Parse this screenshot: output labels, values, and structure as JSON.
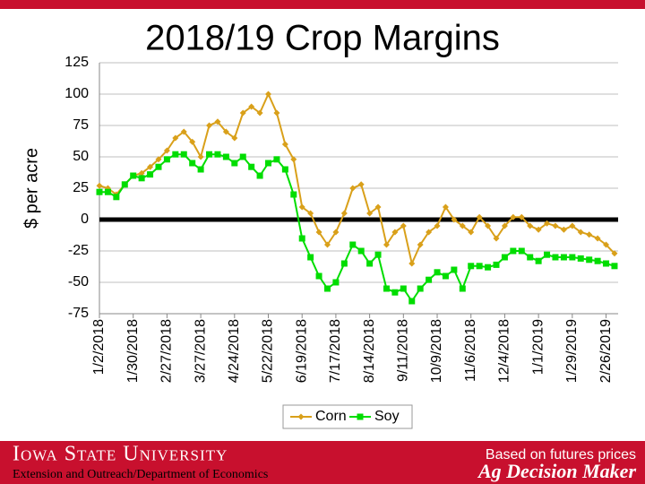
{
  "chart_data": {
    "type": "line",
    "title": "2018/19 Crop Margins",
    "y_label": "$ per acre",
    "x": [
      "2018-01-02",
      "2018-01-09",
      "2018-01-16",
      "2018-01-23",
      "2018-01-30",
      "2018-02-06",
      "2018-02-13",
      "2018-02-20",
      "2018-02-27",
      "2018-03-06",
      "2018-03-13",
      "2018-03-20",
      "2018-03-27",
      "2018-04-03",
      "2018-04-10",
      "2018-04-17",
      "2018-04-24",
      "2018-05-01",
      "2018-05-08",
      "2018-05-15",
      "2018-05-22",
      "2018-05-29",
      "2018-06-05",
      "2018-06-12",
      "2018-06-19",
      "2018-06-26",
      "2018-07-03",
      "2018-07-10",
      "2018-07-17",
      "2018-07-24",
      "2018-07-31",
      "2018-08-07",
      "2018-08-14",
      "2018-08-21",
      "2018-08-28",
      "2018-09-04",
      "2018-09-11",
      "2018-09-18",
      "2018-09-25",
      "2018-10-02",
      "2018-10-09",
      "2018-10-16",
      "2018-10-23",
      "2018-10-30",
      "2018-11-06",
      "2018-11-13",
      "2018-11-20",
      "2018-11-27",
      "2018-12-04",
      "2018-12-11",
      "2018-12-18",
      "2018-12-25",
      "2019-01-01",
      "2019-01-08",
      "2019-01-15",
      "2019-01-22",
      "2019-01-29",
      "2019-02-05",
      "2019-02-12",
      "2019-02-19",
      "2019-02-26",
      "2019-03-05"
    ],
    "series": [
      {
        "name": "Corn",
        "color": "#d9a01a",
        "marker": "diamond",
        "values": [
          27,
          25,
          20,
          28,
          35,
          37,
          42,
          48,
          55,
          65,
          70,
          62,
          50,
          75,
          78,
          70,
          65,
          85,
          90,
          85,
          100,
          85,
          60,
          48,
          10,
          5,
          -10,
          -20,
          -10,
          5,
          25,
          28,
          5,
          10,
          -20,
          -10,
          -5,
          -35,
          -20,
          -10,
          -5,
          10,
          0,
          -5,
          -10,
          2,
          -5,
          -15,
          -5,
          2,
          2,
          -5,
          -8,
          -3,
          -5,
          -8,
          -5,
          -10,
          -12,
          -15,
          -20,
          -27
        ]
      },
      {
        "name": "Soy",
        "color": "#00dd00",
        "marker": "square",
        "values": [
          22,
          22,
          18,
          28,
          35,
          33,
          36,
          42,
          48,
          52,
          52,
          45,
          40,
          52,
          52,
          50,
          45,
          50,
          42,
          35,
          45,
          48,
          40,
          20,
          -15,
          -30,
          -45,
          -55,
          -50,
          -35,
          -20,
          -25,
          -35,
          -28,
          -55,
          -58,
          -55,
          -65,
          -55,
          -48,
          -42,
          -45,
          -40,
          -55,
          -37,
          -37,
          -38,
          -36,
          -30,
          -25,
          -25,
          -30,
          -33,
          -28,
          -30,
          -30,
          -30,
          -31,
          -32,
          -33,
          -35,
          -37
        ]
      }
    ],
    "xlim": [
      "2018-01-02",
      "2019-03-08"
    ],
    "xticks": [
      {
        "value": "2018-01-02",
        "label": "1/2/2018"
      },
      {
        "value": "2018-01-30",
        "label": "1/30/2018"
      },
      {
        "value": "2018-02-27",
        "label": "2/27/2018"
      },
      {
        "value": "2018-03-27",
        "label": "3/27/2018"
      },
      {
        "value": "2018-04-24",
        "label": "4/24/2018"
      },
      {
        "value": "2018-05-22",
        "label": "5/22/2018"
      },
      {
        "value": "2018-06-19",
        "label": "6/19/2018"
      },
      {
        "value": "2018-07-17",
        "label": "7/17/2018"
      },
      {
        "value": "2018-08-14",
        "label": "8/14/2018"
      },
      {
        "value": "2018-09-11",
        "label": "9/11/2018"
      },
      {
        "value": "2018-10-09",
        "label": "10/9/2018"
      },
      {
        "value": "2018-11-06",
        "label": "11/6/2018"
      },
      {
        "value": "2018-12-04",
        "label": "12/4/2018"
      },
      {
        "value": "2019-01-01",
        "label": "1/1/2019"
      },
      {
        "value": "2019-01-29",
        "label": "1/29/2019"
      },
      {
        "value": "2019-02-26",
        "label": "2/26/2019"
      }
    ],
    "ylim": [
      -75,
      125
    ],
    "yticks": [
      -75,
      -50,
      -25,
      0,
      25,
      50,
      75,
      100,
      125
    ],
    "zero_line": true,
    "grid": true,
    "legend": "bottom"
  },
  "footer": {
    "university": "Iowa State University",
    "department": "Extension and Outreach/Department of Economics",
    "note": "Based on futures prices",
    "brand": "Ag Decision Maker"
  }
}
